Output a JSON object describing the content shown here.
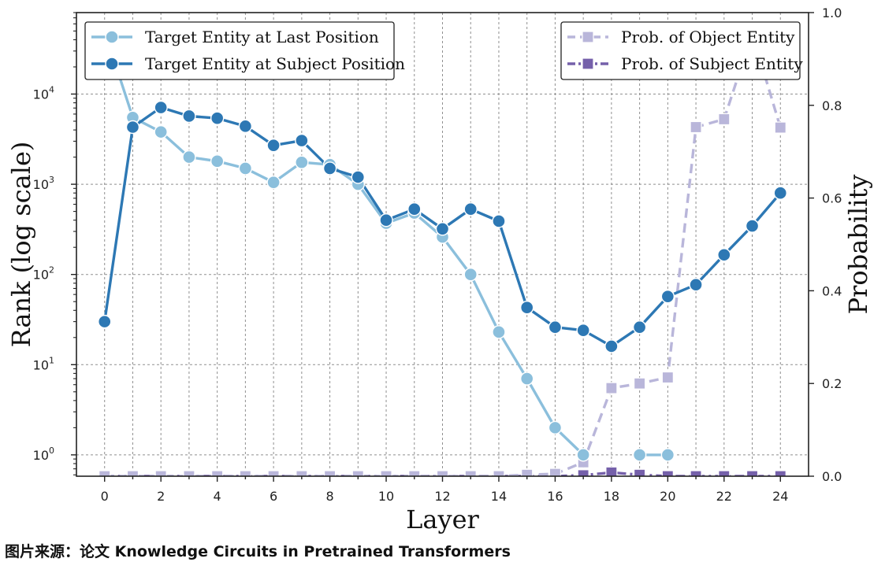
{
  "caption": "图片来源：论文 Knowledge Circuits in Pretrained Transformers",
  "chart_data": {
    "type": "line",
    "xlabel": "Layer",
    "ylabel_left": "Rank (log scale)",
    "ylabel_right": "Probability",
    "x": [
      0,
      1,
      2,
      3,
      4,
      5,
      6,
      7,
      8,
      9,
      10,
      11,
      12,
      13,
      14,
      15,
      16,
      17,
      18,
      19,
      20,
      21,
      22,
      23,
      24
    ],
    "xticks": [
      0,
      2,
      4,
      6,
      8,
      10,
      12,
      14,
      16,
      18,
      20,
      22,
      24
    ],
    "xlim": [
      -1,
      25
    ],
    "left_axis": {
      "scale": "log",
      "ylim": [
        0.58,
        80000
      ],
      "ticks": [
        {
          "value": 1,
          "base": "10",
          "exp": "0"
        },
        {
          "value": 10,
          "base": "10",
          "exp": "1"
        },
        {
          "value": 100,
          "base": "10",
          "exp": "2"
        },
        {
          "value": 1000,
          "base": "10",
          "exp": "3"
        },
        {
          "value": 10000,
          "base": "10",
          "exp": "4"
        }
      ]
    },
    "right_axis": {
      "scale": "linear",
      "ylim": [
        0,
        1
      ],
      "ticks": [
        "0.0",
        "0.2",
        "0.4",
        "0.6",
        "0.8",
        "1.0"
      ]
    },
    "grid": true,
    "series": [
      {
        "name": "Target Entity at Last Position",
        "axis": "left",
        "color": "#8bbfdc",
        "marker": "circle",
        "dash": "solid",
        "values": [
          50000,
          5500,
          3800,
          2000,
          1800,
          1500,
          1050,
          1750,
          1650,
          1000,
          370,
          480,
          260,
          100,
          23,
          7,
          2,
          1,
          null,
          1,
          1,
          null,
          null,
          null,
          null
        ]
      },
      {
        "name": "Target Entity at Subject Position",
        "axis": "left",
        "color": "#2d78b4",
        "marker": "circle",
        "dash": "solid",
        "values": [
          30,
          4300,
          7100,
          5700,
          5400,
          4400,
          2700,
          3050,
          1500,
          1200,
          400,
          530,
          320,
          530,
          390,
          43,
          26,
          24,
          16,
          26,
          57,
          77,
          165,
          345,
          800
        ]
      },
      {
        "name": "Prob. of Object Entity",
        "axis": "right",
        "color": "#b9b6da",
        "marker": "square",
        "dash": "dashed",
        "values": [
          0,
          0,
          0,
          0,
          0,
          0,
          0,
          0,
          0,
          0,
          0,
          0,
          0,
          0,
          0,
          0.003,
          0.005,
          0.03,
          0.19,
          0.2,
          0.213,
          0.753,
          0.77,
          0.955,
          0.752
        ]
      },
      {
        "name": "Prob. of Subject Entity",
        "axis": "right",
        "color": "#7560aa",
        "marker": "square",
        "dash": "dashdot",
        "values": [
          0,
          0,
          0,
          0,
          0,
          0,
          0,
          0,
          0,
          0,
          0,
          0,
          0,
          0,
          0,
          0,
          0,
          0.002,
          0.008,
          0.003,
          0,
          0,
          0,
          0,
          0
        ]
      }
    ],
    "legend_left": "top-left",
    "legend_right": "top-right"
  }
}
